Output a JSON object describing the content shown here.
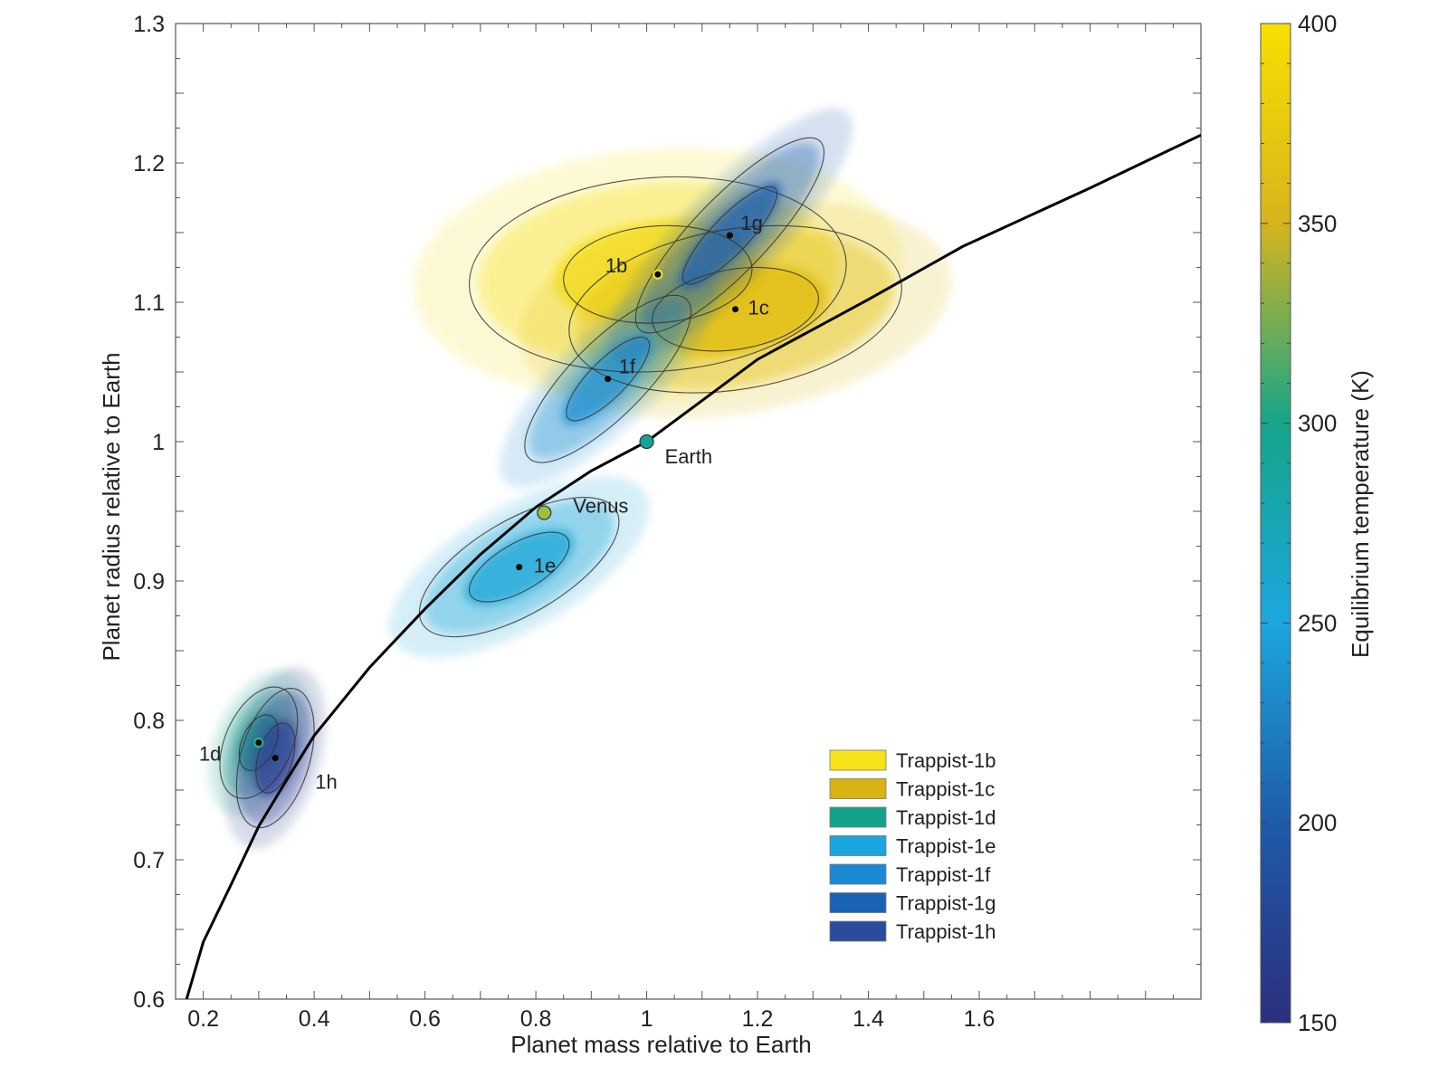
{
  "chart_data": {
    "type": "scatter",
    "title": "",
    "xlabel": "Planet mass relative to Earth",
    "ylabel": "Planet radius relative to Earth",
    "xlim": [
      0.15,
      2.0
    ],
    "ylim": [
      0.6,
      1.3
    ],
    "xticks": [
      0.2,
      0.4,
      0.6,
      0.8,
      1.0,
      1.2,
      1.4,
      1.6
    ],
    "xtick_labels": [
      "0.2",
      "0.4",
      "0.6",
      "0.8",
      "1",
      "1.2",
      "1.4",
      "1.6"
    ],
    "yticks": [
      0.6,
      0.7,
      0.8,
      0.9,
      1.0,
      1.1,
      1.2,
      1.3
    ],
    "ytick_labels": [
      "0.6",
      "0.7",
      "0.8",
      "0.9",
      "1",
      "1.1",
      "1.2",
      "1.3"
    ],
    "grid": false,
    "colorbar": {
      "label": "Equilibrium temperature (K)",
      "range": [
        150,
        400
      ],
      "ticks": [
        150,
        200,
        250,
        300,
        350,
        400
      ],
      "tick_labels": [
        "150",
        "200",
        "250",
        "300",
        "350",
        "400"
      ],
      "stops": [
        "#2b2f7e",
        "#1f5ba8",
        "#1ca7df",
        "#16a58a",
        "#d6b41c",
        "#f7e000"
      ]
    },
    "planets": [
      {
        "label": "1b",
        "name": "Trappist-1b",
        "mass": 1.02,
        "radius": 1.12,
        "temperature": 400,
        "color": "#f7e21a",
        "sigma_mass": 0.17,
        "sigma_radius": 0.035,
        "rho": 0.1
      },
      {
        "label": "1c",
        "name": "Trappist-1c",
        "mass": 1.16,
        "radius": 1.095,
        "temperature": 342,
        "color": "#e0bb10",
        "sigma_mass": 0.15,
        "sigma_radius": 0.03,
        "rho": 0.25
      },
      {
        "label": "1d",
        "name": "Trappist-1d",
        "mass": 0.3,
        "radius": 0.784,
        "temperature": 288,
        "color": "#14a084",
        "sigma_mass": 0.035,
        "sigma_radius": 0.02,
        "rho": 0.4
      },
      {
        "label": "1e",
        "name": "Trappist-1e",
        "mass": 0.77,
        "radius": 0.91,
        "temperature": 251,
        "color": "#1aa6d8",
        "sigma_mass": 0.09,
        "sigma_radius": 0.025,
        "rho": 0.65
      },
      {
        "label": "1f",
        "name": "Trappist-1f",
        "mass": 0.93,
        "radius": 1.045,
        "temperature": 219,
        "color": "#1a8fd0",
        "sigma_mass": 0.075,
        "sigma_radius": 0.03,
        "rho": 0.8
      },
      {
        "label": "1g",
        "name": "Trappist-1g",
        "mass": 1.15,
        "radius": 1.148,
        "temperature": 198,
        "color": "#1a5faf",
        "sigma_mass": 0.085,
        "sigma_radius": 0.035,
        "rho": 0.85
      },
      {
        "label": "1h",
        "name": "Trappist-1h",
        "mass": 0.33,
        "radius": 0.773,
        "temperature": 168,
        "color": "#2e3f94",
        "sigma_mass": 0.035,
        "sigma_radius": 0.025,
        "rho": 0.4
      }
    ],
    "reference_bodies": [
      {
        "name": "Venus",
        "mass": 0.815,
        "radius": 0.949,
        "color": "#9cc040"
      },
      {
        "name": "Earth",
        "mass": 1.0,
        "radius": 1.0,
        "color": "#14a49a"
      }
    ],
    "mass_radius_curve": {
      "mass": [
        0.17,
        0.2,
        0.25,
        0.3,
        0.35,
        0.4,
        0.5,
        0.6,
        0.7,
        0.8,
        0.9,
        1.0,
        1.2,
        1.4,
        1.57,
        1.8,
        2.0
      ],
      "radius": [
        0.6,
        0.641,
        0.682,
        0.724,
        0.757,
        0.789,
        0.838,
        0.88,
        0.919,
        0.953,
        0.979,
        1.0,
        1.059,
        1.102,
        1.14,
        1.182,
        1.22
      ]
    },
    "legend": {
      "position": "lower-right",
      "entries": [
        "Trappist-1b",
        "Trappist-1c",
        "Trappist-1d",
        "Trappist-1e",
        "Trappist-1f",
        "Trappist-1g",
        "Trappist-1h"
      ],
      "colors": [
        "#f7e21a",
        "#d8b413",
        "#13a38a",
        "#19a6df",
        "#1a8ad2",
        "#1a63b2",
        "#2b4c9e"
      ]
    }
  }
}
